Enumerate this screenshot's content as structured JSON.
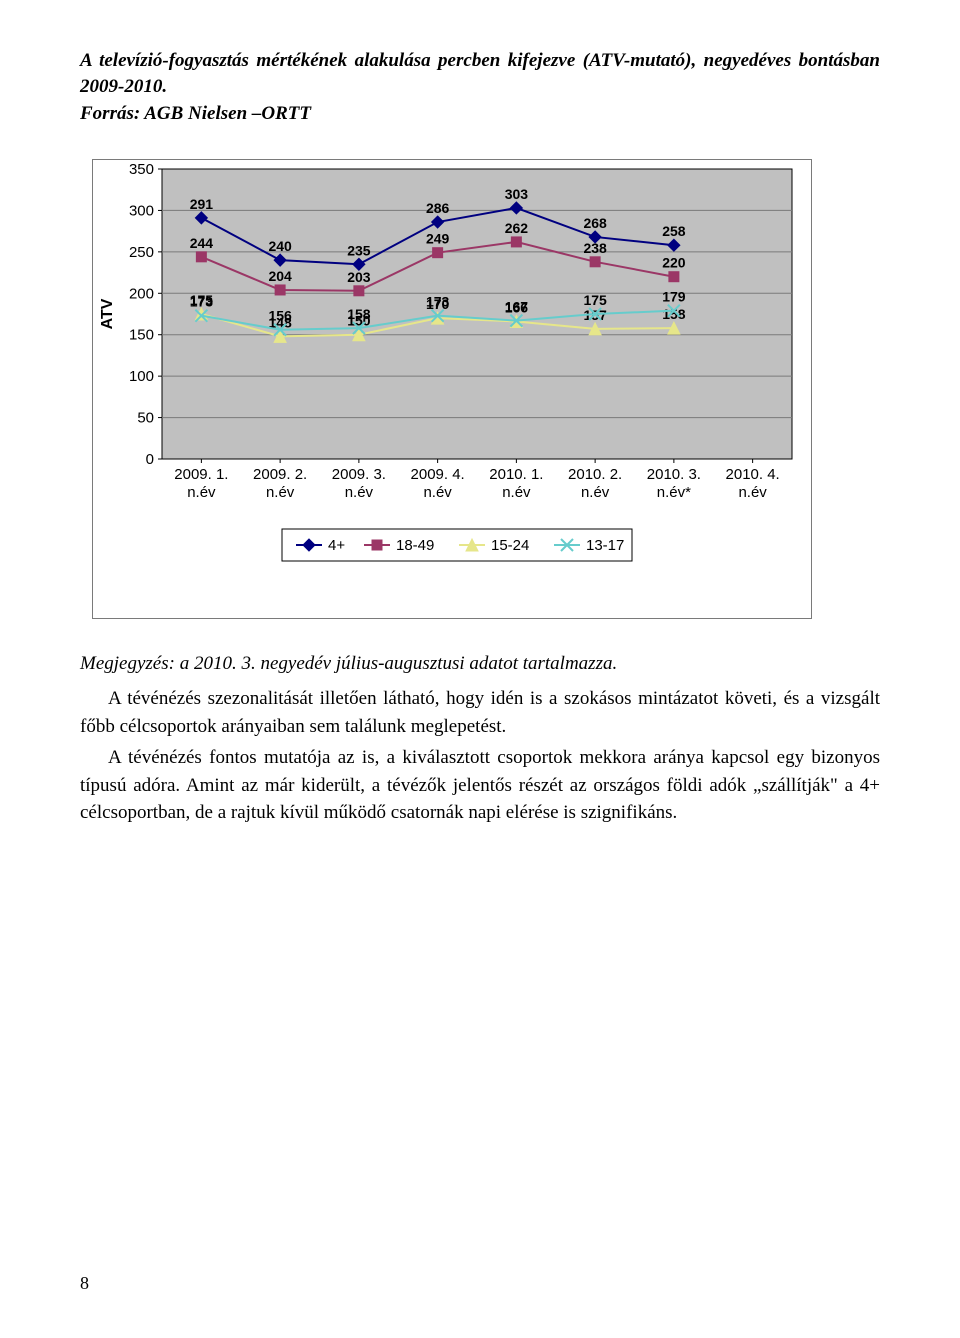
{
  "title_line1": "A televízió-fogyasztás mértékének alakulása percben kifejezve (ATV-mutató), negyedéves bontásban 2009-2010.",
  "subtitle": "Forrás: AGB Nielsen –ORTT",
  "chart": {
    "ylabel": "ATV",
    "ylim": [
      0,
      350
    ],
    "ytick_step": 50,
    "categories": [
      "2009. 1. n.év",
      "2009. 2. n.év",
      "2009. 3. n.év",
      "2009. 4. n.év",
      "2010. 1. n.év",
      "2010. 2. n.év",
      "2010. 3. n.év*",
      "2010. 4. n.év"
    ],
    "series": [
      {
        "name": "4+",
        "values": [
          291,
          240,
          235,
          286,
          303,
          268,
          258,
          null
        ],
        "color": "#000080",
        "marker": "diamond"
      },
      {
        "name": "18-49",
        "values": [
          244,
          204,
          203,
          249,
          262,
          238,
          220,
          null
        ],
        "color": "#9b3766",
        "marker": "square"
      },
      {
        "name": "15-24",
        "values": [
          175,
          148,
          150,
          170,
          166,
          157,
          158,
          null
        ],
        "color": "#e6e68a",
        "marker": "triangle"
      },
      {
        "name": "13-17",
        "values": [
          173,
          156,
          158,
          173,
          167,
          175,
          179,
          null
        ],
        "color": "#66cccc",
        "marker": "x"
      }
    ],
    "label_overrides": {
      "13-17_6": "179",
      "15-24_6": "158"
    },
    "bg_color": "#c0c0c0",
    "grid_color": "#7a7a7a",
    "font_size_axis": 15,
    "font_size_label": 14,
    "font_size_ylabel": 16,
    "line_width": 2,
    "marker_size": 6,
    "plot_border": "#000"
  },
  "note": "Megjegyzés: a 2010. 3. negyedév  július-augusztusi adatot tartalmazza.",
  "para1": "A tévénézés szezonalitását illetően látható, hogy idén is a szokásos mintázatot követi, és a vizsgált főbb célcsoportok arányaiban sem találunk meglepetést.",
  "para2": "A tévénézés fontos mutatója az is, a kiválasztott csoportok mekkora aránya kapcsol egy bizonyos típusú adóra. Amint az már kiderült, a tévézők jelentős részét az országos földi adók „szállítják\" a 4+ célcsoportban, de a rajtuk kívül működő csatornák napi elérése is szignifikáns.",
  "page_num": "8"
}
